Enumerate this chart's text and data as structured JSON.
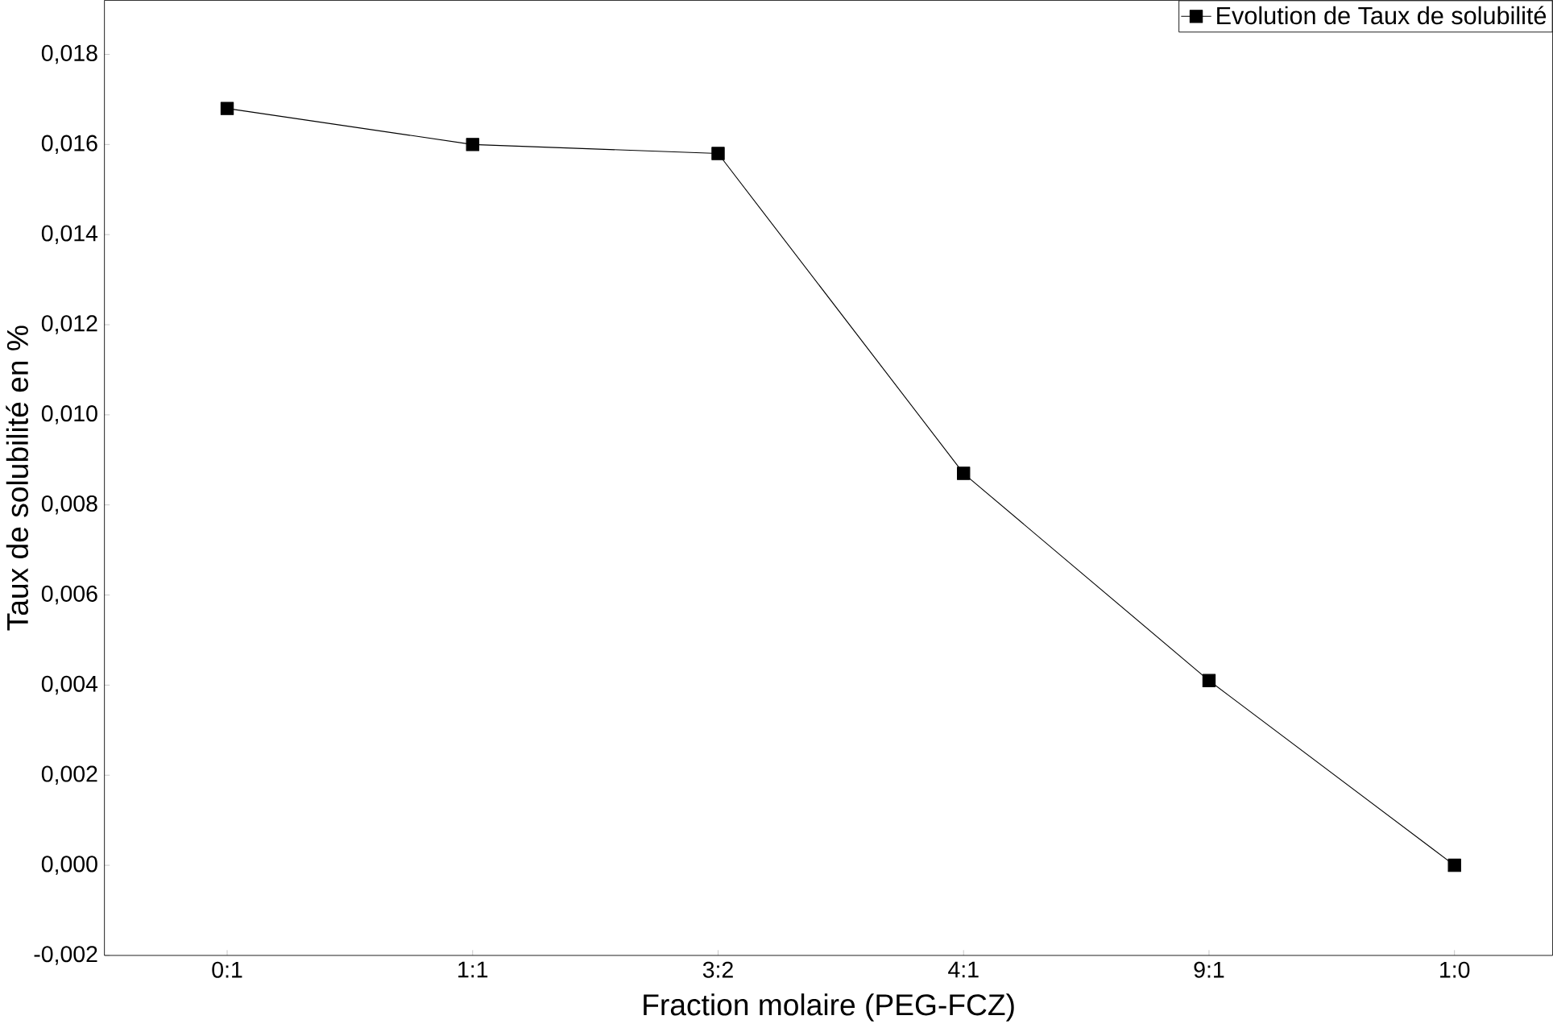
{
  "chart_data": {
    "type": "line",
    "xlabel": "Fraction molaire (PEG-FCZ)",
    "ylabel": "Taux de solubilité en %",
    "categories": [
      "0:1",
      "1:1",
      "3:2",
      "4:1",
      "9:1",
      "1:0"
    ],
    "series": [
      {
        "name": "Evolution de Taux de solubilité",
        "color": "#000000",
        "values": [
          0.0168,
          0.016,
          0.0158,
          0.0087,
          0.0041,
          0.0
        ]
      }
    ],
    "ylim": [
      -0.002,
      0.0192
    ],
    "yticks": [
      {
        "value": -0.002,
        "label": "-0,002"
      },
      {
        "value": 0.0,
        "label": "0,000"
      },
      {
        "value": 0.002,
        "label": "0,002"
      },
      {
        "value": 0.004,
        "label": "0,004"
      },
      {
        "value": 0.006,
        "label": "0,006"
      },
      {
        "value": 0.008,
        "label": "0,008"
      },
      {
        "value": 0.01,
        "label": "0,010"
      },
      {
        "value": 0.012,
        "label": "0,012"
      },
      {
        "value": 0.014,
        "label": "0,014"
      },
      {
        "value": 0.016,
        "label": "0,016"
      },
      {
        "value": 0.018,
        "label": "0,018"
      }
    ],
    "legend": "top right",
    "marker": "square",
    "line_style": "solid",
    "grid": false
  }
}
